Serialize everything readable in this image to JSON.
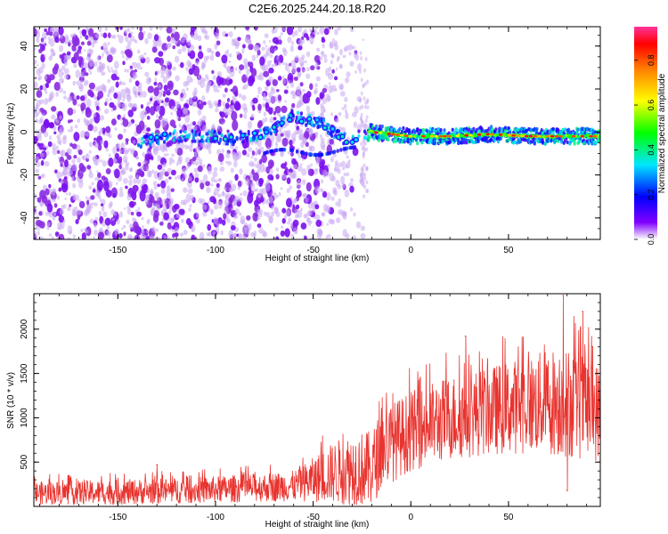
{
  "title": "C2E6.2025.244.20.18.R20",
  "chart_data": [
    {
      "type": "heatmap",
      "xlabel": "Height of straight line (km)",
      "ylabel": "Frequency (Hz)",
      "xlim": [
        -193,
        97
      ],
      "ylim": [
        -50,
        49
      ],
      "x_ticks": [
        "-150",
        "-100",
        "-50",
        "0",
        "50"
      ],
      "y_ticks": [
        "-40",
        "-20",
        "0",
        "20",
        "40"
      ],
      "colorbar": {
        "label": "Normalized spectral amplitude",
        "range": [
          0,
          0.95
        ],
        "ticks": [
          "0.0",
          "0.2",
          "0.4",
          "0.6",
          "0.8"
        ]
      },
      "ridge": [
        {
          "x": -135,
          "f": -4
        },
        {
          "x": -130,
          "f": -3
        },
        {
          "x": -125,
          "f": -2
        },
        {
          "x": -100,
          "f": -2
        },
        {
          "x": -95,
          "f": -4
        },
        {
          "x": -90,
          "f": -3
        },
        {
          "x": -85,
          "f": -2
        },
        {
          "x": -80,
          "f": -2
        },
        {
          "x": -75,
          "f": -1
        },
        {
          "x": -70,
          "f": 2
        },
        {
          "x": -65,
          "f": 5
        },
        {
          "x": -60,
          "f": 8
        },
        {
          "x": -55,
          "f": 6
        },
        {
          "x": -45,
          "f": 4
        },
        {
          "x": -40,
          "f": 0
        },
        {
          "x": -35,
          "f": -3
        },
        {
          "x": -30,
          "f": -4
        },
        {
          "x": -25,
          "f": -1
        },
        {
          "x": -20,
          "f": 0
        },
        {
          "x": 0,
          "f": -2
        },
        {
          "x": 20,
          "f": -2
        },
        {
          "x": 40,
          "f": -1
        },
        {
          "x": 60,
          "f": -2
        },
        {
          "x": 80,
          "f": -2
        },
        {
          "x": 97,
          "f": -2
        }
      ]
    },
    {
      "type": "line",
      "xlabel": "Height of straight line (km)",
      "ylabel": "SNR (10 * v/v)",
      "xlim": [
        -193,
        97
      ],
      "ylim": [
        0,
        2400
      ],
      "x_ticks": [
        "-150",
        "-100",
        "-50",
        "0",
        "50"
      ],
      "y_ticks": [
        "500",
        "1000",
        "1500",
        "2000"
      ],
      "series": [
        {
          "name": "SNR",
          "color": "#e8332e",
          "envelope": [
            {
              "x": -193,
              "base": 150,
              "amp": 130
            },
            {
              "x": -150,
              "base": 160,
              "amp": 140
            },
            {
              "x": -100,
              "base": 190,
              "amp": 150
            },
            {
              "x": -60,
              "base": 230,
              "amp": 170
            },
            {
              "x": -50,
              "base": 300,
              "amp": 250
            },
            {
              "x": -40,
              "base": 380,
              "amp": 340
            },
            {
              "x": -30,
              "base": 420,
              "amp": 420
            },
            {
              "x": -20,
              "base": 420,
              "amp": 430
            },
            {
              "x": -15,
              "base": 650,
              "amp": 450
            },
            {
              "x": 0,
              "base": 850,
              "amp": 450
            },
            {
              "x": 20,
              "base": 1000,
              "amp": 480
            },
            {
              "x": 40,
              "base": 1080,
              "amp": 500
            },
            {
              "x": 60,
              "base": 1150,
              "amp": 550
            },
            {
              "x": 80,
              "base": 1200,
              "amp": 650
            },
            {
              "x": 97,
              "base": 1050,
              "amp": 550
            }
          ],
          "notable_points": [
            {
              "x": -130,
              "y": 470
            },
            {
              "x": 28,
              "y": 1920
            },
            {
              "x": 78,
              "y": 2380
            },
            {
              "x": 80,
              "y": 180
            },
            {
              "x": 88,
              "y": 2200
            },
            {
              "x": 93,
              "y": 1800
            }
          ]
        }
      ]
    }
  ]
}
